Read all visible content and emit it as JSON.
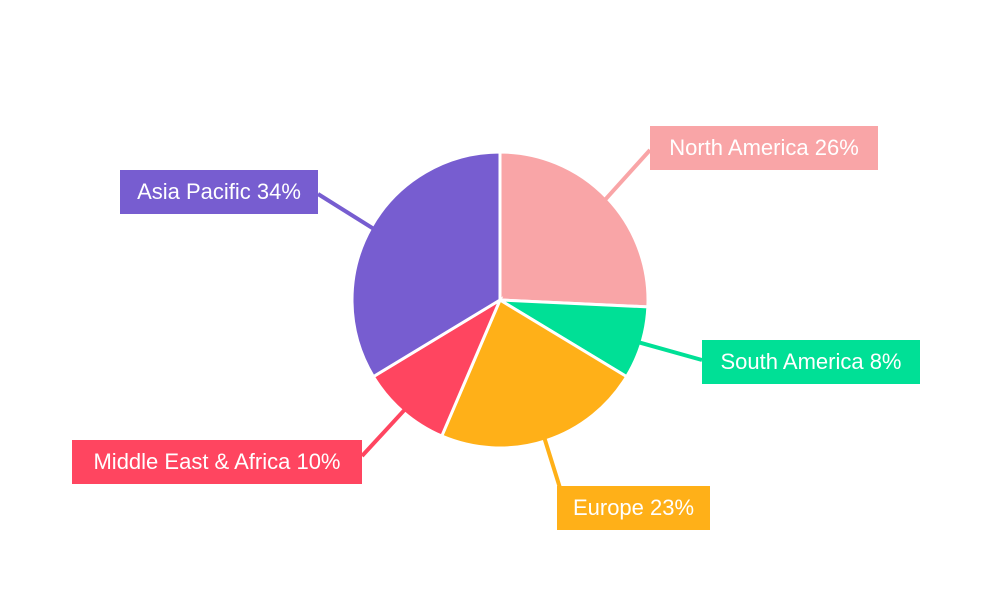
{
  "chart_data": {
    "type": "pie",
    "title": "",
    "start_angle": "12 o'clock, clockwise",
    "slices": [
      {
        "label": "North America",
        "value": 26,
        "display": "North America 26%",
        "color": "#F9A5A7"
      },
      {
        "label": "South America",
        "value": 8,
        "display": "South America 8%",
        "color": "#00E096"
      },
      {
        "label": "Europe",
        "value": 23,
        "display": "Europe 23%",
        "color": "#FFB018"
      },
      {
        "label": "Middle East & Africa",
        "value": 10,
        "display": "Middle East & Africa 10%",
        "color": "#FF4560"
      },
      {
        "label": "Asia Pacific",
        "value": 34,
        "display": "Asia Pacific 34%",
        "color": "#775DD0"
      }
    ]
  }
}
